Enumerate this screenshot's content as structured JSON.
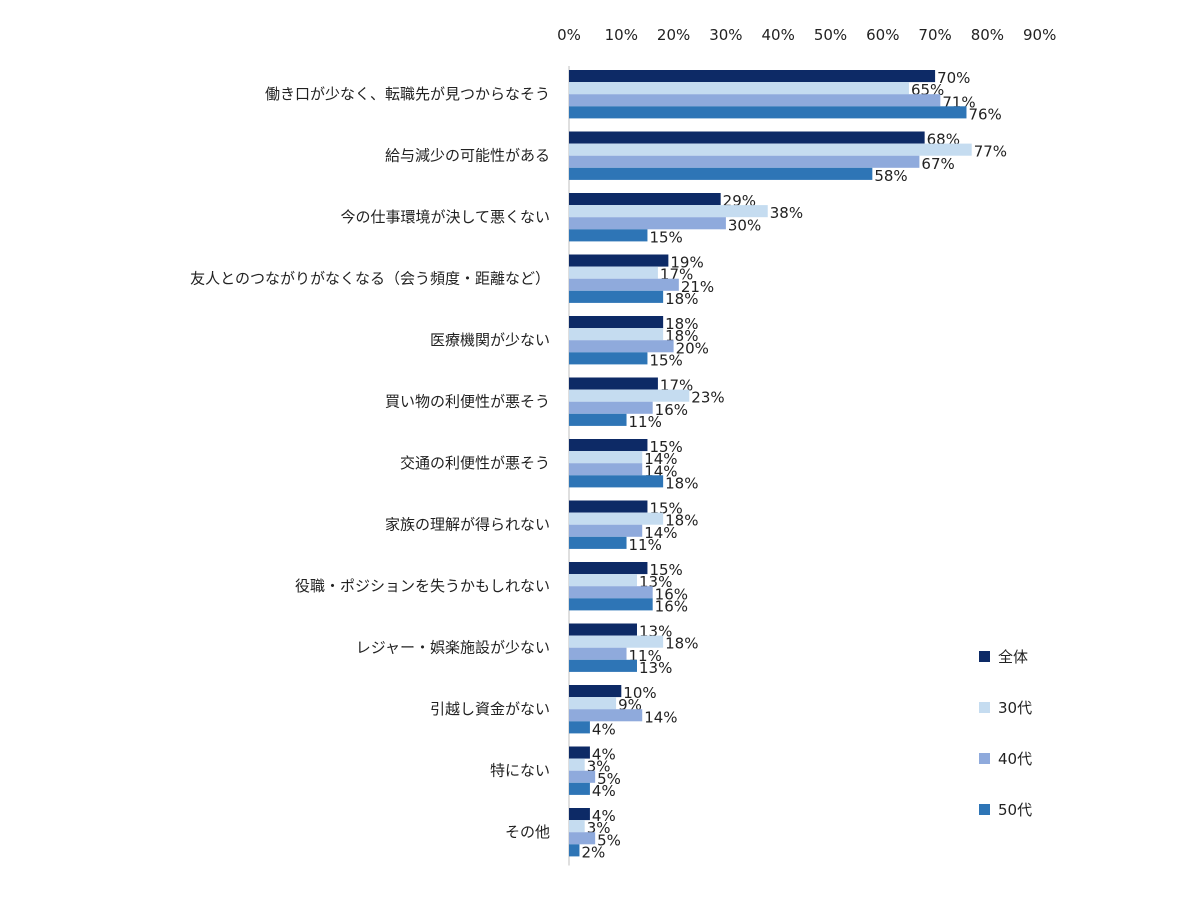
{
  "chart_data": {
    "type": "bar",
    "orientation": "horizontal",
    "title": "",
    "xlabel": "",
    "ylabel": "",
    "xlim": [
      0,
      90
    ],
    "x_ticks": [
      "0%",
      "10%",
      "20%",
      "30%",
      "40%",
      "50%",
      "60%",
      "70%",
      "80%",
      "90%"
    ],
    "axis_position": "top",
    "grid": false,
    "legend_position": "right",
    "unit_suffix": "%",
    "categories": [
      "働き口が少なく、転職先が見つからなそう",
      "給与減少の可能性がある",
      "今の仕事環境が決して悪くない",
      "友人とのつながりがなくなる（会う頻度・距離など）",
      "医療機関が少ない",
      "買い物の利便性が悪そう",
      "交通の利便性が悪そう",
      "家族の理解が得られない",
      "役職・ポジションを失うかもしれない",
      "レジャー・娯楽施設が少ない",
      "引越し資金がない",
      "特にない",
      "その他"
    ],
    "series": [
      {
        "name": "全体",
        "color": "#0d2a66",
        "values": [
          70,
          68,
          29,
          19,
          18,
          17,
          15,
          15,
          15,
          13,
          10,
          4,
          4
        ]
      },
      {
        "name": "30代",
        "color": "#c5dcf0",
        "values": [
          65,
          77,
          38,
          17,
          18,
          23,
          14,
          18,
          13,
          18,
          9,
          3,
          3
        ]
      },
      {
        "name": "40代",
        "color": "#8faadc",
        "values": [
          71,
          67,
          30,
          21,
          20,
          16,
          14,
          14,
          16,
          11,
          14,
          5,
          5
        ]
      },
      {
        "name": "50代",
        "color": "#2e75b6",
        "values": [
          76,
          58,
          15,
          18,
          15,
          11,
          18,
          11,
          16,
          13,
          4,
          4,
          2
        ]
      }
    ]
  }
}
